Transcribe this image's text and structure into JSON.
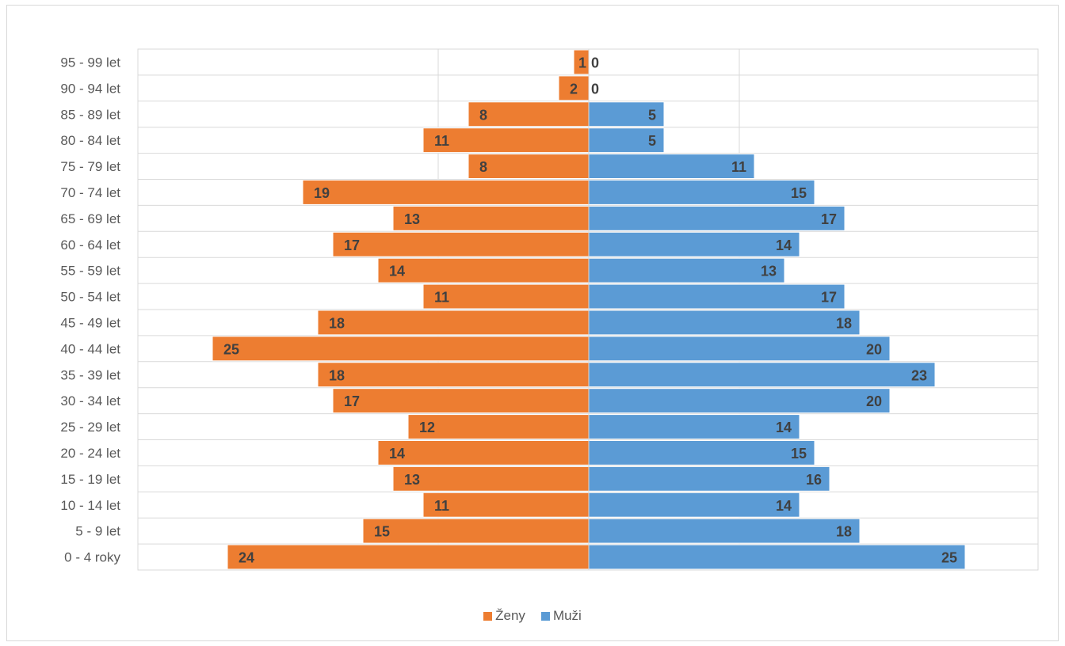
{
  "chart_data": {
    "type": "bar",
    "orientation": "horizontal",
    "layout": "population-pyramid",
    "categories": [
      "0 - 4 roky",
      "5 - 9 let",
      "10 - 14 let",
      "15 - 19 let",
      "20 - 24 let",
      "25 - 29 let",
      "30 - 34 let",
      "35 - 39 let",
      "40 - 44 let",
      "45 - 49 let",
      "50 - 54 let",
      "55 - 59 let",
      "60 - 64 let",
      "65 - 69 let",
      "70 - 74 let",
      "75 - 79 let",
      "80 - 84 let",
      "85 - 89 let",
      "90 - 94 let",
      "95 - 99 let"
    ],
    "series": [
      {
        "name": "Ženy",
        "color": "#ed7d31",
        "side": "left",
        "values": [
          24,
          15,
          11,
          13,
          14,
          12,
          17,
          18,
          25,
          18,
          11,
          14,
          17,
          13,
          19,
          8,
          11,
          8,
          2,
          1
        ]
      },
      {
        "name": "Muži",
        "color": "#5b9bd5",
        "side": "right",
        "values": [
          25,
          18,
          14,
          16,
          15,
          14,
          20,
          23,
          20,
          18,
          17,
          13,
          14,
          17,
          15,
          11,
          5,
          5,
          0,
          0
        ]
      }
    ],
    "xlim": [
      -30,
      30
    ],
    "grid": true,
    "legend_position": "bottom",
    "data_labels": true
  }
}
